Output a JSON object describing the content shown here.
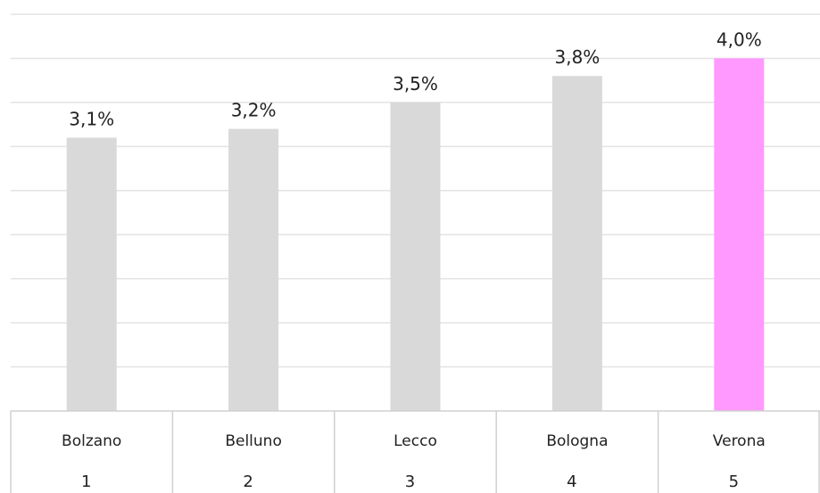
{
  "chart_data": {
    "type": "bar",
    "categories": [
      "Bolzano",
      "Belluno",
      "Lecco",
      "Bologna",
      "Verona"
    ],
    "ranks": [
      "1",
      "2",
      "3",
      "4",
      "5"
    ],
    "values": [
      3.1,
      3.2,
      3.5,
      3.8,
      4.0
    ],
    "value_labels": [
      "3,1%",
      "3,2%",
      "3,5%",
      "3,8%",
      "4,0%"
    ],
    "ylim": [
      0,
      4.5
    ],
    "grid": true,
    "colors": {
      "default_bar": "#d9d9d9",
      "highlight_bar": "#ff99ff",
      "gridline": "#e3e3e3"
    },
    "highlight_index": 4
  }
}
